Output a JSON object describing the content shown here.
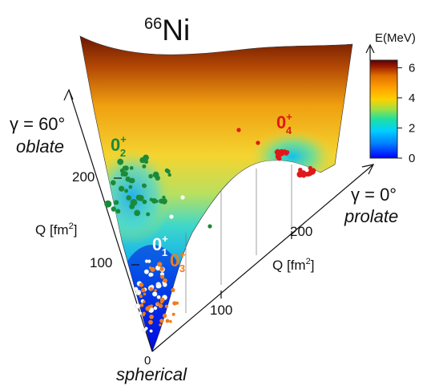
{
  "chart_data": {
    "type": "heatmap",
    "title": "Ni",
    "title_superscript": "66",
    "colorbar": {
      "label": "E(MeV)",
      "range": [
        0,
        6.5
      ],
      "ticks": [
        0,
        2,
        4,
        6
      ],
      "colors": [
        "#0000ff",
        "#0080ff",
        "#00d0ff",
        "#20e0a0",
        "#a0e040",
        "#ffd000",
        "#ffa000",
        "#e07000",
        "#a02000",
        "#5a0000"
      ]
    },
    "axes": {
      "oblate": {
        "gamma_label": "γ = 60°",
        "shape_label": "oblate",
        "qlabel_main": "Q [fm",
        "qlabel_sup": "2",
        "qlabel_end": "]",
        "ticks": [
          0,
          100,
          200
        ]
      },
      "prolate": {
        "gamma_label": "γ = 0°",
        "shape_label": "prolate",
        "qlabel_main": "Q [fm",
        "qlabel_sup": "2",
        "qlabel_end": "]",
        "ticks": [
          100,
          200
        ]
      },
      "origin_label": "spherical",
      "origin_tick": "0"
    },
    "states": [
      {
        "label": "0",
        "sup": "+",
        "sub": "1",
        "color": "#ffffff"
      },
      {
        "label": "0",
        "sup": "+",
        "sub": "2",
        "color": "#1a8a3a"
      },
      {
        "label": "0",
        "sup": "+",
        "sub": "3",
        "color": "#f07d1a"
      },
      {
        "label": "0",
        "sup": "+",
        "sub": "4",
        "color": "#e01818"
      }
    ]
  }
}
